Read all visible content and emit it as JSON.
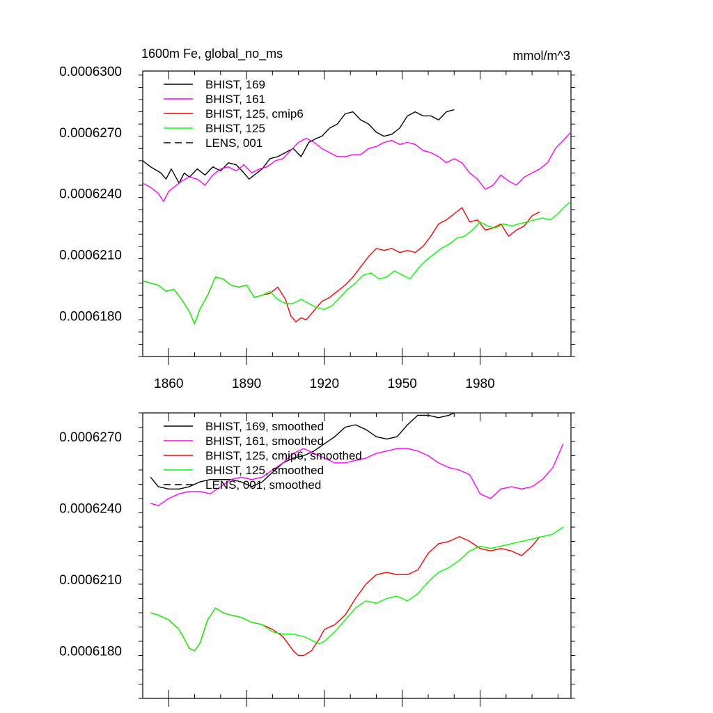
{
  "chart_data": [
    {
      "type": "line",
      "title": "1600m Fe, global_no_ms",
      "units": "mmol/m^3",
      "xlim": [
        1850,
        2015
      ],
      "ylim": [
        0.000616,
        0.00063
      ],
      "x_ticks": [
        1860,
        1890,
        1920,
        1950,
        1980
      ],
      "x_tick_labels": [
        "1860",
        "1890",
        "1920",
        "1950",
        "1980"
      ],
      "y_ticks": [
        0.000618,
        0.000621,
        0.000624,
        0.000627,
        0.00063
      ],
      "y_tick_labels": [
        "0.0006180",
        "0.0006210",
        "0.0006240",
        "0.0006270",
        "0.0006300"
      ],
      "legend_position": "top-left",
      "series": [
        {
          "name": "BHIST, 169",
          "color": "#000000",
          "dash": false,
          "x": [
            1850,
            1853,
            1857,
            1859,
            1861,
            1864,
            1866,
            1868,
            1871,
            1874,
            1877,
            1880,
            1883,
            1886,
            1889,
            1891,
            1894,
            1896,
            1899,
            1902,
            1905,
            1908,
            1911,
            1914,
            1917,
            1919,
            1922,
            1925,
            1928,
            1931,
            1934,
            1937,
            1940,
            1943,
            1946,
            1949,
            1952,
            1955,
            1958,
            1961,
            1964,
            1967,
            1970
          ],
          "y": [
            0.0006256,
            0.0006253,
            0.000625,
            0.0006247,
            0.0006252,
            0.0006245,
            0.000625,
            0.0006248,
            0.0006252,
            0.0006249,
            0.0006253,
            0.0006251,
            0.0006255,
            0.0006254,
            0.000625,
            0.0006247,
            0.000625,
            0.0006252,
            0.0006257,
            0.0006258,
            0.000626,
            0.0006262,
            0.0006258,
            0.0006265,
            0.0006267,
            0.0006268,
            0.0006272,
            0.0006274,
            0.0006279,
            0.000628,
            0.0006276,
            0.0006274,
            0.000627,
            0.0006268,
            0.0006269,
            0.0006272,
            0.0006278,
            0.000628,
            0.0006278,
            0.0006278,
            0.0006276,
            0.000628,
            0.0006281
          ]
        },
        {
          "name": "BHIST, 161",
          "color": "#ff00ff",
          "dash": false,
          "x": [
            1850,
            1853,
            1856,
            1858,
            1860,
            1862,
            1865,
            1868,
            1871,
            1874,
            1877,
            1880,
            1883,
            1886,
            1889,
            1892,
            1895,
            1898,
            1901,
            1904,
            1907,
            1910,
            1913,
            1916,
            1919,
            1922,
            1925,
            1928,
            1931,
            1934,
            1937,
            1940,
            1943,
            1946,
            1949,
            1952,
            1955,
            1958,
            1961,
            1964,
            1967,
            1970,
            1973,
            1976,
            1979,
            1982,
            1985,
            1988,
            1991,
            1994,
            1997,
            2000,
            2003,
            2006,
            2009,
            2012,
            2015
          ],
          "y": [
            0.0006245,
            0.0006243,
            0.000624,
            0.0006236,
            0.0006241,
            0.0006243,
            0.0006246,
            0.0006248,
            0.0006247,
            0.0006244,
            0.0006249,
            0.0006252,
            0.0006253,
            0.0006251,
            0.0006254,
            0.000625,
            0.0006252,
            0.0006253,
            0.0006256,
            0.0006257,
            0.0006261,
            0.0006265,
            0.0006267,
            0.0006265,
            0.0006262,
            0.000626,
            0.0006258,
            0.0006258,
            0.0006259,
            0.0006259,
            0.0006262,
            0.0006263,
            0.0006265,
            0.0006266,
            0.0006264,
            0.0006265,
            0.0006264,
            0.0006261,
            0.000626,
            0.0006258,
            0.0006255,
            0.0006257,
            0.0006255,
            0.000625,
            0.0006247,
            0.0006242,
            0.0006244,
            0.0006249,
            0.0006246,
            0.0006244,
            0.0006248,
            0.000625,
            0.0006252,
            0.0006255,
            0.0006262,
            0.0006266,
            0.000627
          ]
        },
        {
          "name": "BHIST, 125, cmip6",
          "color": "#ff0000",
          "dash": false,
          "x": [
            1850,
            1853,
            1856,
            1859,
            1862,
            1865,
            1868,
            1870,
            1872,
            1875,
            1878,
            1881,
            1884,
            1887,
            1890,
            1893,
            1896,
            1899,
            1902,
            1905,
            1907,
            1909,
            1911,
            1913,
            1915,
            1917,
            1919,
            1922,
            1925,
            1928,
            1931,
            1934,
            1937,
            1940,
            1943,
            1946,
            1949,
            1952,
            1955,
            1958,
            1961,
            1964,
            1967,
            1970,
            1973,
            1976,
            1979,
            1982,
            1985,
            1988,
            1991,
            1994,
            1997,
            2000,
            2003
          ],
          "y": [
            0.0006197,
            0.0006196,
            0.0006195,
            0.0006192,
            0.0006193,
            0.0006188,
            0.0006182,
            0.0006176,
            0.0006183,
            0.000619,
            0.0006199,
            0.0006198,
            0.0006195,
            0.0006194,
            0.0006195,
            0.0006189,
            0.000619,
            0.0006191,
            0.0006194,
            0.0006188,
            0.000618,
            0.0006177,
            0.0006179,
            0.0006178,
            0.0006181,
            0.0006184,
            0.0006187,
            0.0006189,
            0.0006192,
            0.0006195,
            0.0006199,
            0.0006204,
            0.0006209,
            0.0006213,
            0.0006212,
            0.0006213,
            0.0006211,
            0.0006212,
            0.0006211,
            0.0006214,
            0.0006219,
            0.0006225,
            0.0006227,
            0.000623,
            0.0006233,
            0.0006226,
            0.0006227,
            0.0006222,
            0.0006223,
            0.0006225,
            0.0006219,
            0.0006222,
            0.0006224,
            0.0006229,
            0.0006231
          ]
        },
        {
          "name": "BHIST, 125",
          "color": "#00ff00",
          "dash": false,
          "x": [
            1850,
            1853,
            1856,
            1859,
            1862,
            1865,
            1868,
            1870,
            1872,
            1875,
            1878,
            1881,
            1884,
            1887,
            1890,
            1893,
            1896,
            1899,
            1902,
            1905,
            1908,
            1911,
            1914,
            1917,
            1920,
            1923,
            1926,
            1929,
            1932,
            1935,
            1938,
            1941,
            1944,
            1947,
            1950,
            1953,
            1956,
            1959,
            1962,
            1965,
            1968,
            1971,
            1974,
            1977,
            1980,
            1983,
            1986,
            1989,
            1992,
            1995,
            1998,
            2001,
            2004,
            2007,
            2010,
            2013,
            2015
          ],
          "y": [
            0.0006197,
            0.0006196,
            0.0006195,
            0.0006192,
            0.0006193,
            0.0006188,
            0.0006182,
            0.0006176,
            0.0006183,
            0.000619,
            0.0006199,
            0.0006198,
            0.0006195,
            0.0006194,
            0.0006195,
            0.0006189,
            0.000619,
            0.0006192,
            0.0006188,
            0.0006186,
            0.0006186,
            0.0006188,
            0.0006186,
            0.0006184,
            0.0006183,
            0.0006185,
            0.0006189,
            0.0006193,
            0.0006196,
            0.00062,
            0.0006201,
            0.0006198,
            0.0006199,
            0.0006202,
            0.00062,
            0.0006198,
            0.0006203,
            0.0006207,
            0.000621,
            0.0006213,
            0.0006215,
            0.0006218,
            0.0006219,
            0.0006222,
            0.0006226,
            0.0006224,
            0.0006223,
            0.0006225,
            0.0006224,
            0.0006225,
            0.0006226,
            0.0006227,
            0.0006228,
            0.0006227,
            0.000623,
            0.0006234,
            0.0006236
          ]
        },
        {
          "name": "LENS, 001",
          "color": "#000000",
          "dash": true,
          "x": [],
          "y": []
        }
      ]
    },
    {
      "type": "line",
      "title": "",
      "xlim": [
        1850,
        2015
      ],
      "ylim": [
        0.000616,
        0.000628
      ],
      "x_ticks": [
        1860,
        1890,
        1920,
        1950,
        1980
      ],
      "y_ticks": [
        0.000618,
        0.000621,
        0.000624,
        0.000627
      ],
      "y_tick_labels": [
        "0.0006180",
        "0.0006210",
        "0.0006240",
        "0.0006270"
      ],
      "legend_position": "top-left",
      "series": [
        {
          "name": "BHIST, 169, smoothed",
          "color": "#000000",
          "dash": false,
          "x": [
            1853,
            1856,
            1860,
            1864,
            1868,
            1872,
            1876,
            1880,
            1884,
            1888,
            1892,
            1896,
            1900,
            1904,
            1908,
            1912,
            1916,
            1920,
            1924,
            1928,
            1932,
            1936,
            1940,
            1944,
            1948,
            1952,
            1956,
            1960,
            1964,
            1968,
            1970
          ],
          "y": [
            0.0006253,
            0.0006249,
            0.0006248,
            0.0006248,
            0.0006249,
            0.0006251,
            0.0006252,
            0.0006252,
            0.0006252,
            0.0006251,
            0.0006249,
            0.0006251,
            0.0006255,
            0.0006259,
            0.0006261,
            0.0006262,
            0.0006264,
            0.0006267,
            0.000627,
            0.0006274,
            0.0006275,
            0.0006273,
            0.000627,
            0.0006269,
            0.000627,
            0.0006275,
            0.0006279,
            0.0006279,
            0.0006278,
            0.0006279,
            0.000628
          ]
        },
        {
          "name": "BHIST, 161, smoothed",
          "color": "#ff00ff",
          "dash": false,
          "x": [
            1853,
            1856,
            1860,
            1864,
            1868,
            1872,
            1876,
            1880,
            1884,
            1888,
            1892,
            1896,
            1900,
            1904,
            1908,
            1912,
            1916,
            1920,
            1924,
            1928,
            1932,
            1936,
            1940,
            1944,
            1948,
            1952,
            1956,
            1960,
            1964,
            1968,
            1972,
            1976,
            1980,
            1984,
            1988,
            1992,
            1996,
            2000,
            2004,
            2008,
            2012
          ],
          "y": [
            0.0006242,
            0.0006241,
            0.0006244,
            0.0006246,
            0.0006247,
            0.0006247,
            0.0006246,
            0.0006249,
            0.0006252,
            0.0006253,
            0.0006252,
            0.0006253,
            0.0006256,
            0.0006259,
            0.0006263,
            0.0006265,
            0.0006263,
            0.0006261,
            0.0006259,
            0.0006259,
            0.000626,
            0.0006261,
            0.0006263,
            0.0006264,
            0.0006265,
            0.0006265,
            0.0006264,
            0.0006262,
            0.0006259,
            0.0006257,
            0.0006256,
            0.0006254,
            0.0006246,
            0.0006244,
            0.0006248,
            0.0006249,
            0.0006248,
            0.0006249,
            0.0006252,
            0.0006257,
            0.0006267
          ]
        },
        {
          "name": "BHIST, 125, cmip6, smoothed",
          "color": "#ff0000",
          "dash": false,
          "x": [
            1853,
            1856,
            1860,
            1864,
            1868,
            1870,
            1872,
            1875,
            1878,
            1881,
            1884,
            1888,
            1892,
            1896,
            1900,
            1904,
            1908,
            1910,
            1912,
            1915,
            1918,
            1920,
            1924,
            1928,
            1932,
            1936,
            1940,
            1944,
            1948,
            1952,
            1956,
            1960,
            1964,
            1968,
            1972,
            1976,
            1980,
            1984,
            1988,
            1992,
            1996,
            2000,
            2003
          ],
          "y": [
            0.0006196,
            0.0006195,
            0.0006193,
            0.0006189,
            0.0006181,
            0.000618,
            0.0006183,
            0.0006193,
            0.0006198,
            0.0006196,
            0.0006195,
            0.0006194,
            0.0006192,
            0.0006191,
            0.0006189,
            0.0006186,
            0.000618,
            0.0006178,
            0.0006178,
            0.000618,
            0.0006185,
            0.0006189,
            0.0006191,
            0.0006195,
            0.0006202,
            0.0006208,
            0.0006212,
            0.0006213,
            0.0006212,
            0.0006212,
            0.0006214,
            0.0006221,
            0.0006225,
            0.0006226,
            0.0006228,
            0.0006226,
            0.0006223,
            0.0006222,
            0.0006223,
            0.0006222,
            0.000622,
            0.0006224,
            0.0006228
          ]
        },
        {
          "name": "BHIST, 125, smoothed",
          "color": "#00ff00",
          "dash": false,
          "x": [
            1853,
            1856,
            1860,
            1864,
            1868,
            1870,
            1872,
            1875,
            1878,
            1881,
            1884,
            1888,
            1892,
            1896,
            1900,
            1904,
            1908,
            1912,
            1916,
            1918,
            1920,
            1924,
            1928,
            1932,
            1936,
            1940,
            1944,
            1948,
            1952,
            1956,
            1960,
            1964,
            1968,
            1972,
            1976,
            1980,
            1984,
            1988,
            1992,
            1996,
            2000,
            2004,
            2008,
            2012
          ],
          "y": [
            0.0006196,
            0.0006195,
            0.0006193,
            0.0006189,
            0.0006181,
            0.000618,
            0.0006183,
            0.0006193,
            0.0006198,
            0.0006196,
            0.0006195,
            0.0006194,
            0.0006192,
            0.0006191,
            0.0006188,
            0.0006187,
            0.0006187,
            0.0006186,
            0.0006184,
            0.0006183,
            0.0006184,
            0.0006188,
            0.0006193,
            0.0006198,
            0.0006201,
            0.00062,
            0.0006202,
            0.0006203,
            0.0006201,
            0.0006204,
            0.0006209,
            0.0006213,
            0.0006215,
            0.0006218,
            0.0006222,
            0.0006224,
            0.0006223,
            0.0006224,
            0.0006225,
            0.0006226,
            0.0006227,
            0.0006228,
            0.0006229,
            0.0006232
          ]
        },
        {
          "name": "LENS, 001, smoothed",
          "color": "#000000",
          "dash": true,
          "x": [],
          "y": []
        }
      ]
    }
  ]
}
